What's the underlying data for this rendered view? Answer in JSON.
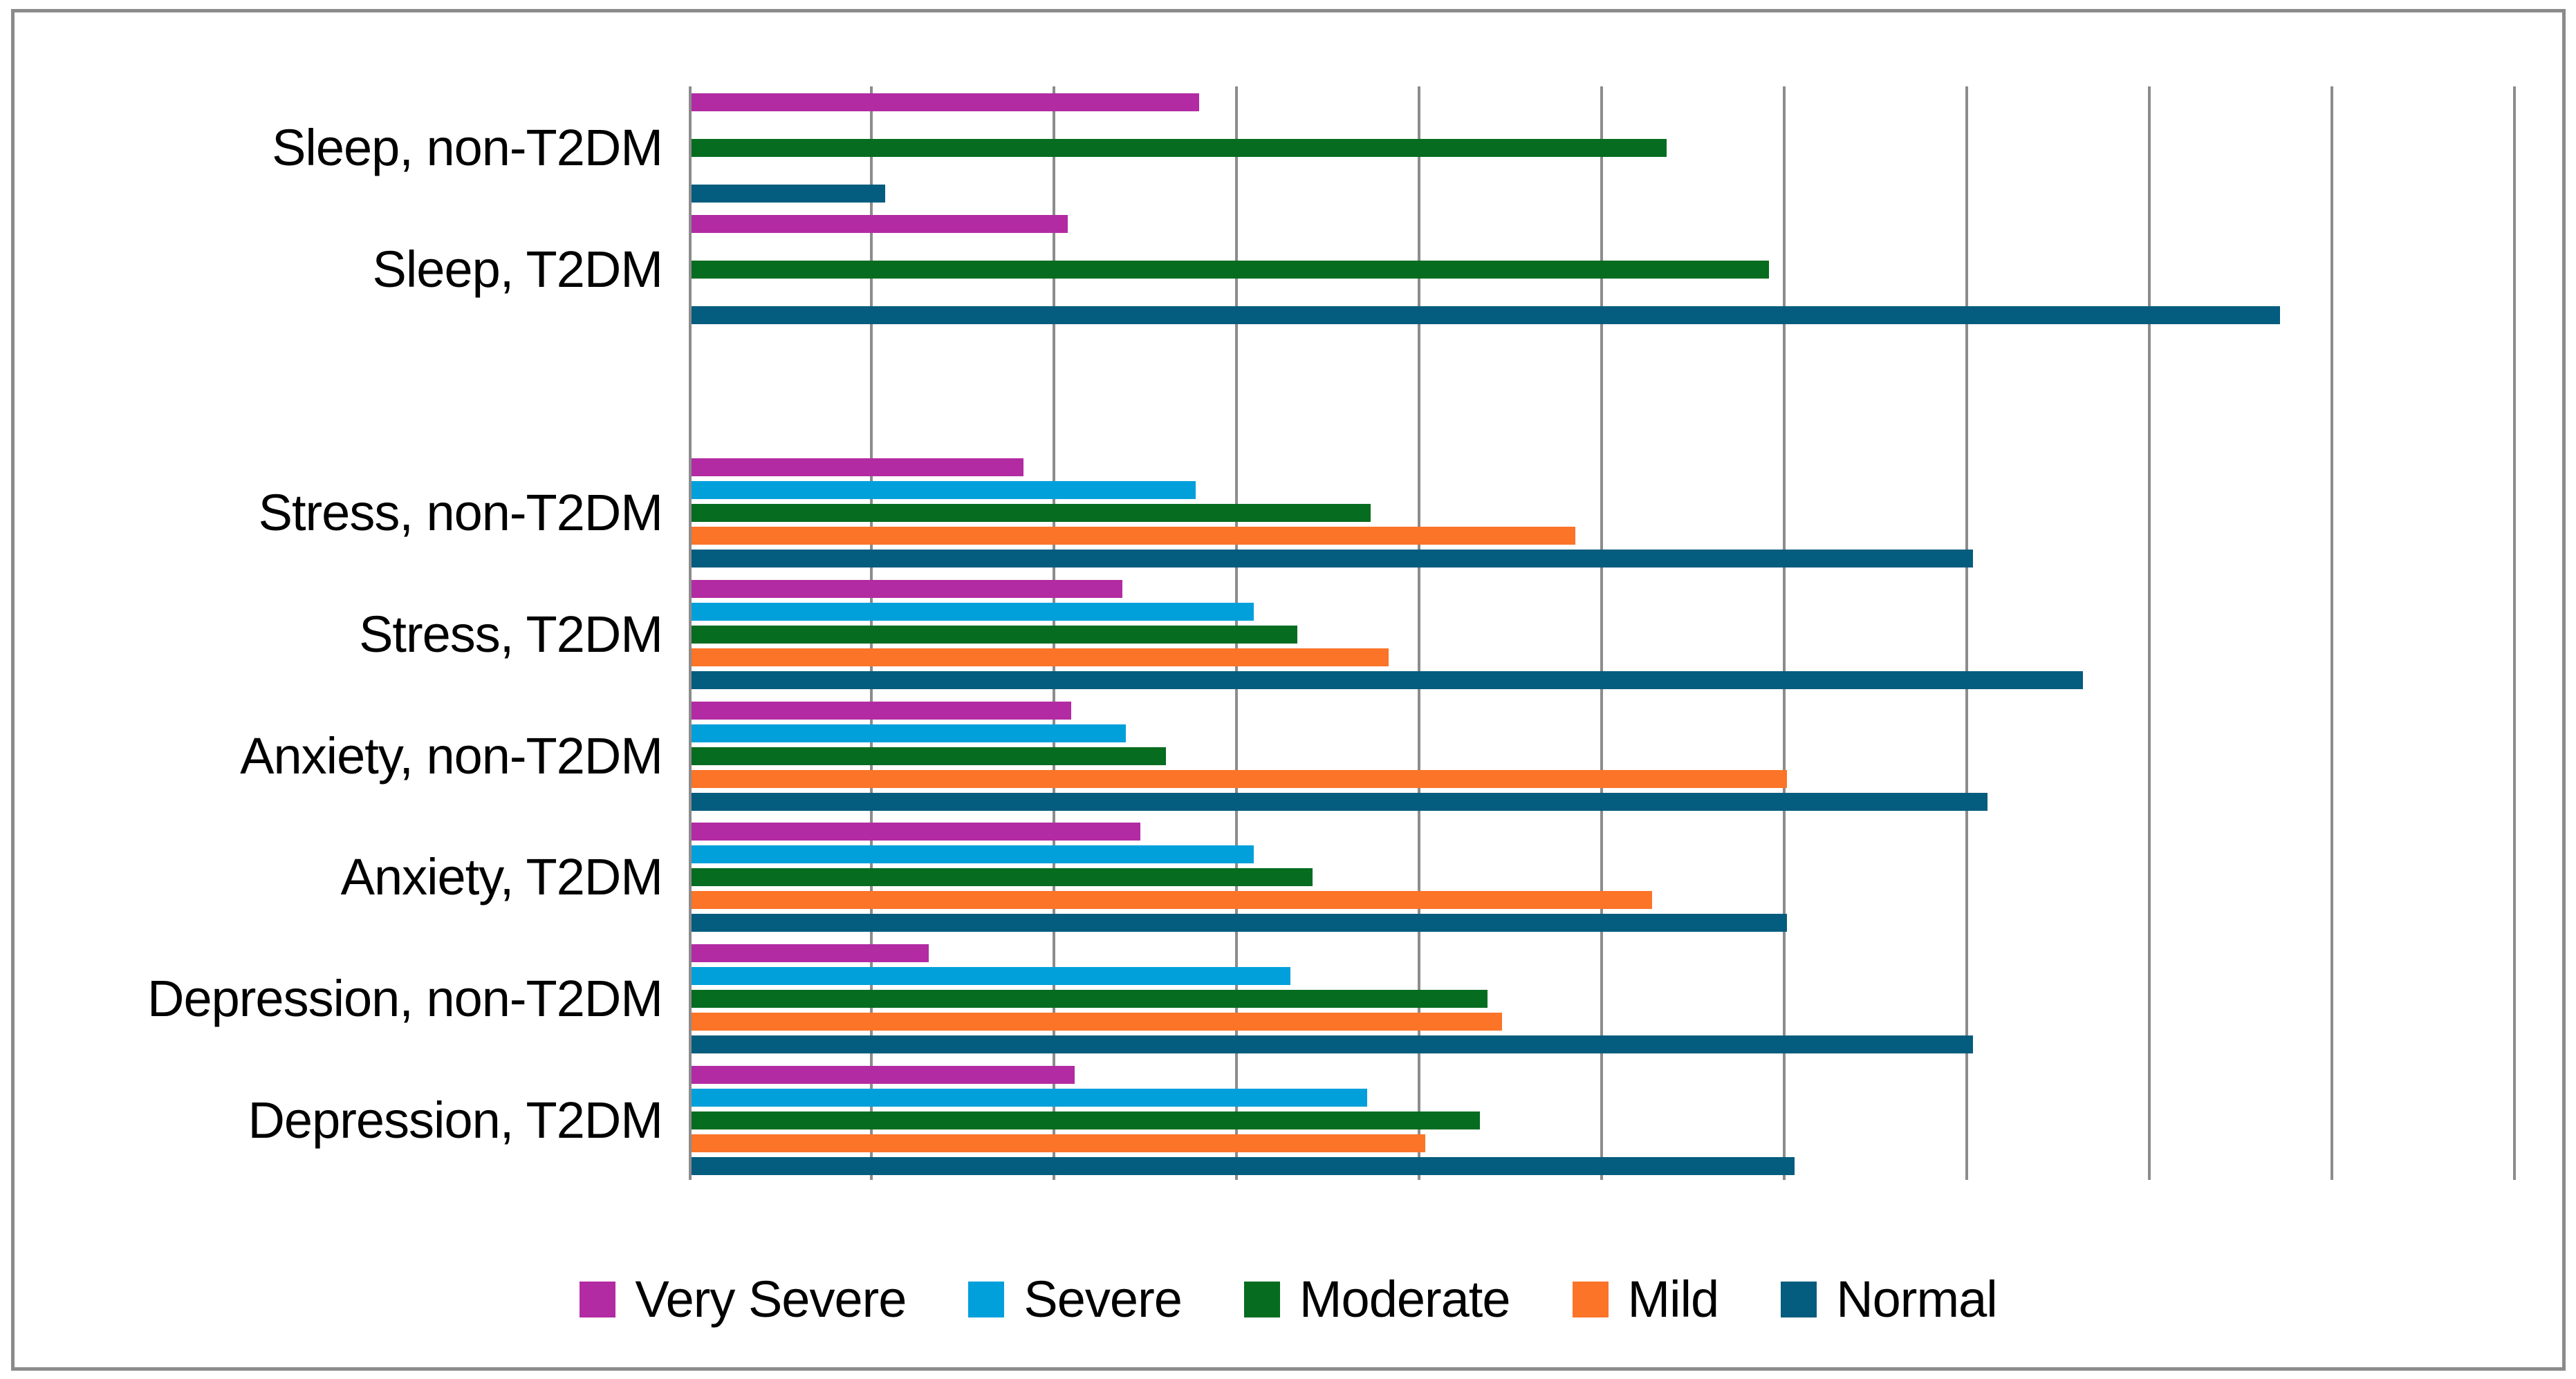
{
  "chart_data": {
    "type": "bar",
    "orientation": "horizontal",
    "title": "",
    "xlabel": "",
    "ylabel": "",
    "x_axis": {
      "min": 0,
      "max": 50,
      "gridline_step": 5,
      "tick_labels_shown": false,
      "gridlines": "on"
    },
    "note_units": "percent (estimated from gridlines; no tick labels shown in chart)",
    "categories": [
      "Sleep, non-T2DM",
      "Sleep, T2DM",
      "",
      "Stress, non-T2DM",
      "Stress, T2DM",
      "Anxiety, non-T2DM",
      "Anxiety, T2DM",
      "Depression, non-T2DM",
      "Depression, T2DM"
    ],
    "series": [
      {
        "name": "Very Severe",
        "color": "#B22BA2",
        "values": [
          13.9,
          10.3,
          null,
          9.1,
          11.8,
          10.4,
          12.3,
          6.5,
          10.5
        ]
      },
      {
        "name": "Severe",
        "color": "#02A0DB",
        "values": [
          null,
          null,
          null,
          13.8,
          15.4,
          11.9,
          15.4,
          16.4,
          18.5
        ]
      },
      {
        "name": "Moderate",
        "color": "#066C1F",
        "values": [
          26.7,
          29.5,
          null,
          18.6,
          16.6,
          13.0,
          17.0,
          21.8,
          21.6
        ]
      },
      {
        "name": "Mild",
        "color": "#FB7428",
        "values": [
          null,
          null,
          null,
          24.2,
          19.1,
          30.0,
          26.3,
          22.2,
          20.1
        ]
      },
      {
        "name": "Normal",
        "color": "#045C7E",
        "values": [
          5.3,
          43.5,
          null,
          35.1,
          38.1,
          35.5,
          30.0,
          35.1,
          30.2
        ]
      }
    ],
    "legend": {
      "position": "bottom",
      "items": [
        "Very Severe",
        "Severe",
        "Moderate",
        "Mild",
        "Normal"
      ]
    },
    "colors": {
      "very_severe": "#B22BA2",
      "severe": "#02A0DB",
      "moderate": "#066C1F",
      "mild": "#FB7428",
      "normal": "#045C7E",
      "gridline": "#8C8C8C",
      "frame_border": "#8B8B8B",
      "background": "#FFFFFF",
      "text": "#000000"
    }
  }
}
